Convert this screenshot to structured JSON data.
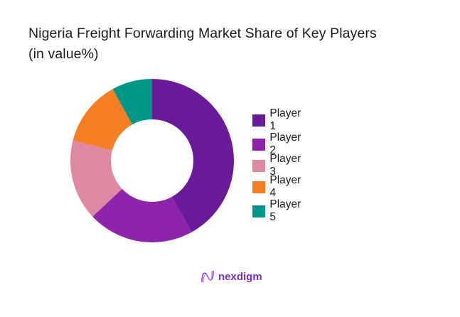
{
  "title": {
    "line1": "Nigeria Freight Forwarding Market Share of Key Players",
    "line2": "(in value%)"
  },
  "chart_data": {
    "type": "pie",
    "subtype": "donut",
    "title": "Nigeria Freight Forwarding Market Share of Key Players (in value%)",
    "categories": [
      "Player 1",
      "Player 2",
      "Player 3",
      "Player 4",
      "Player 5"
    ],
    "values": [
      42,
      21,
      16,
      13,
      8
    ],
    "colors": [
      "#6a1b9a",
      "#8e24aa",
      "#df88a2",
      "#f57f22",
      "#009688"
    ],
    "legend_position": "right",
    "data_labels": false
  },
  "legend": {
    "items": [
      {
        "label": "Player 1",
        "color": "#6a1b9a"
      },
      {
        "label": "Player 2",
        "color": "#8e24aa"
      },
      {
        "label": "Player 3",
        "color": "#df88a2"
      },
      {
        "label": "Player 4",
        "color": "#f57f22"
      },
      {
        "label": "Player 5",
        "color": "#009688"
      }
    ]
  },
  "branding": {
    "logo_text": "nexdigm",
    "logo_color": "#7b2fbe"
  }
}
